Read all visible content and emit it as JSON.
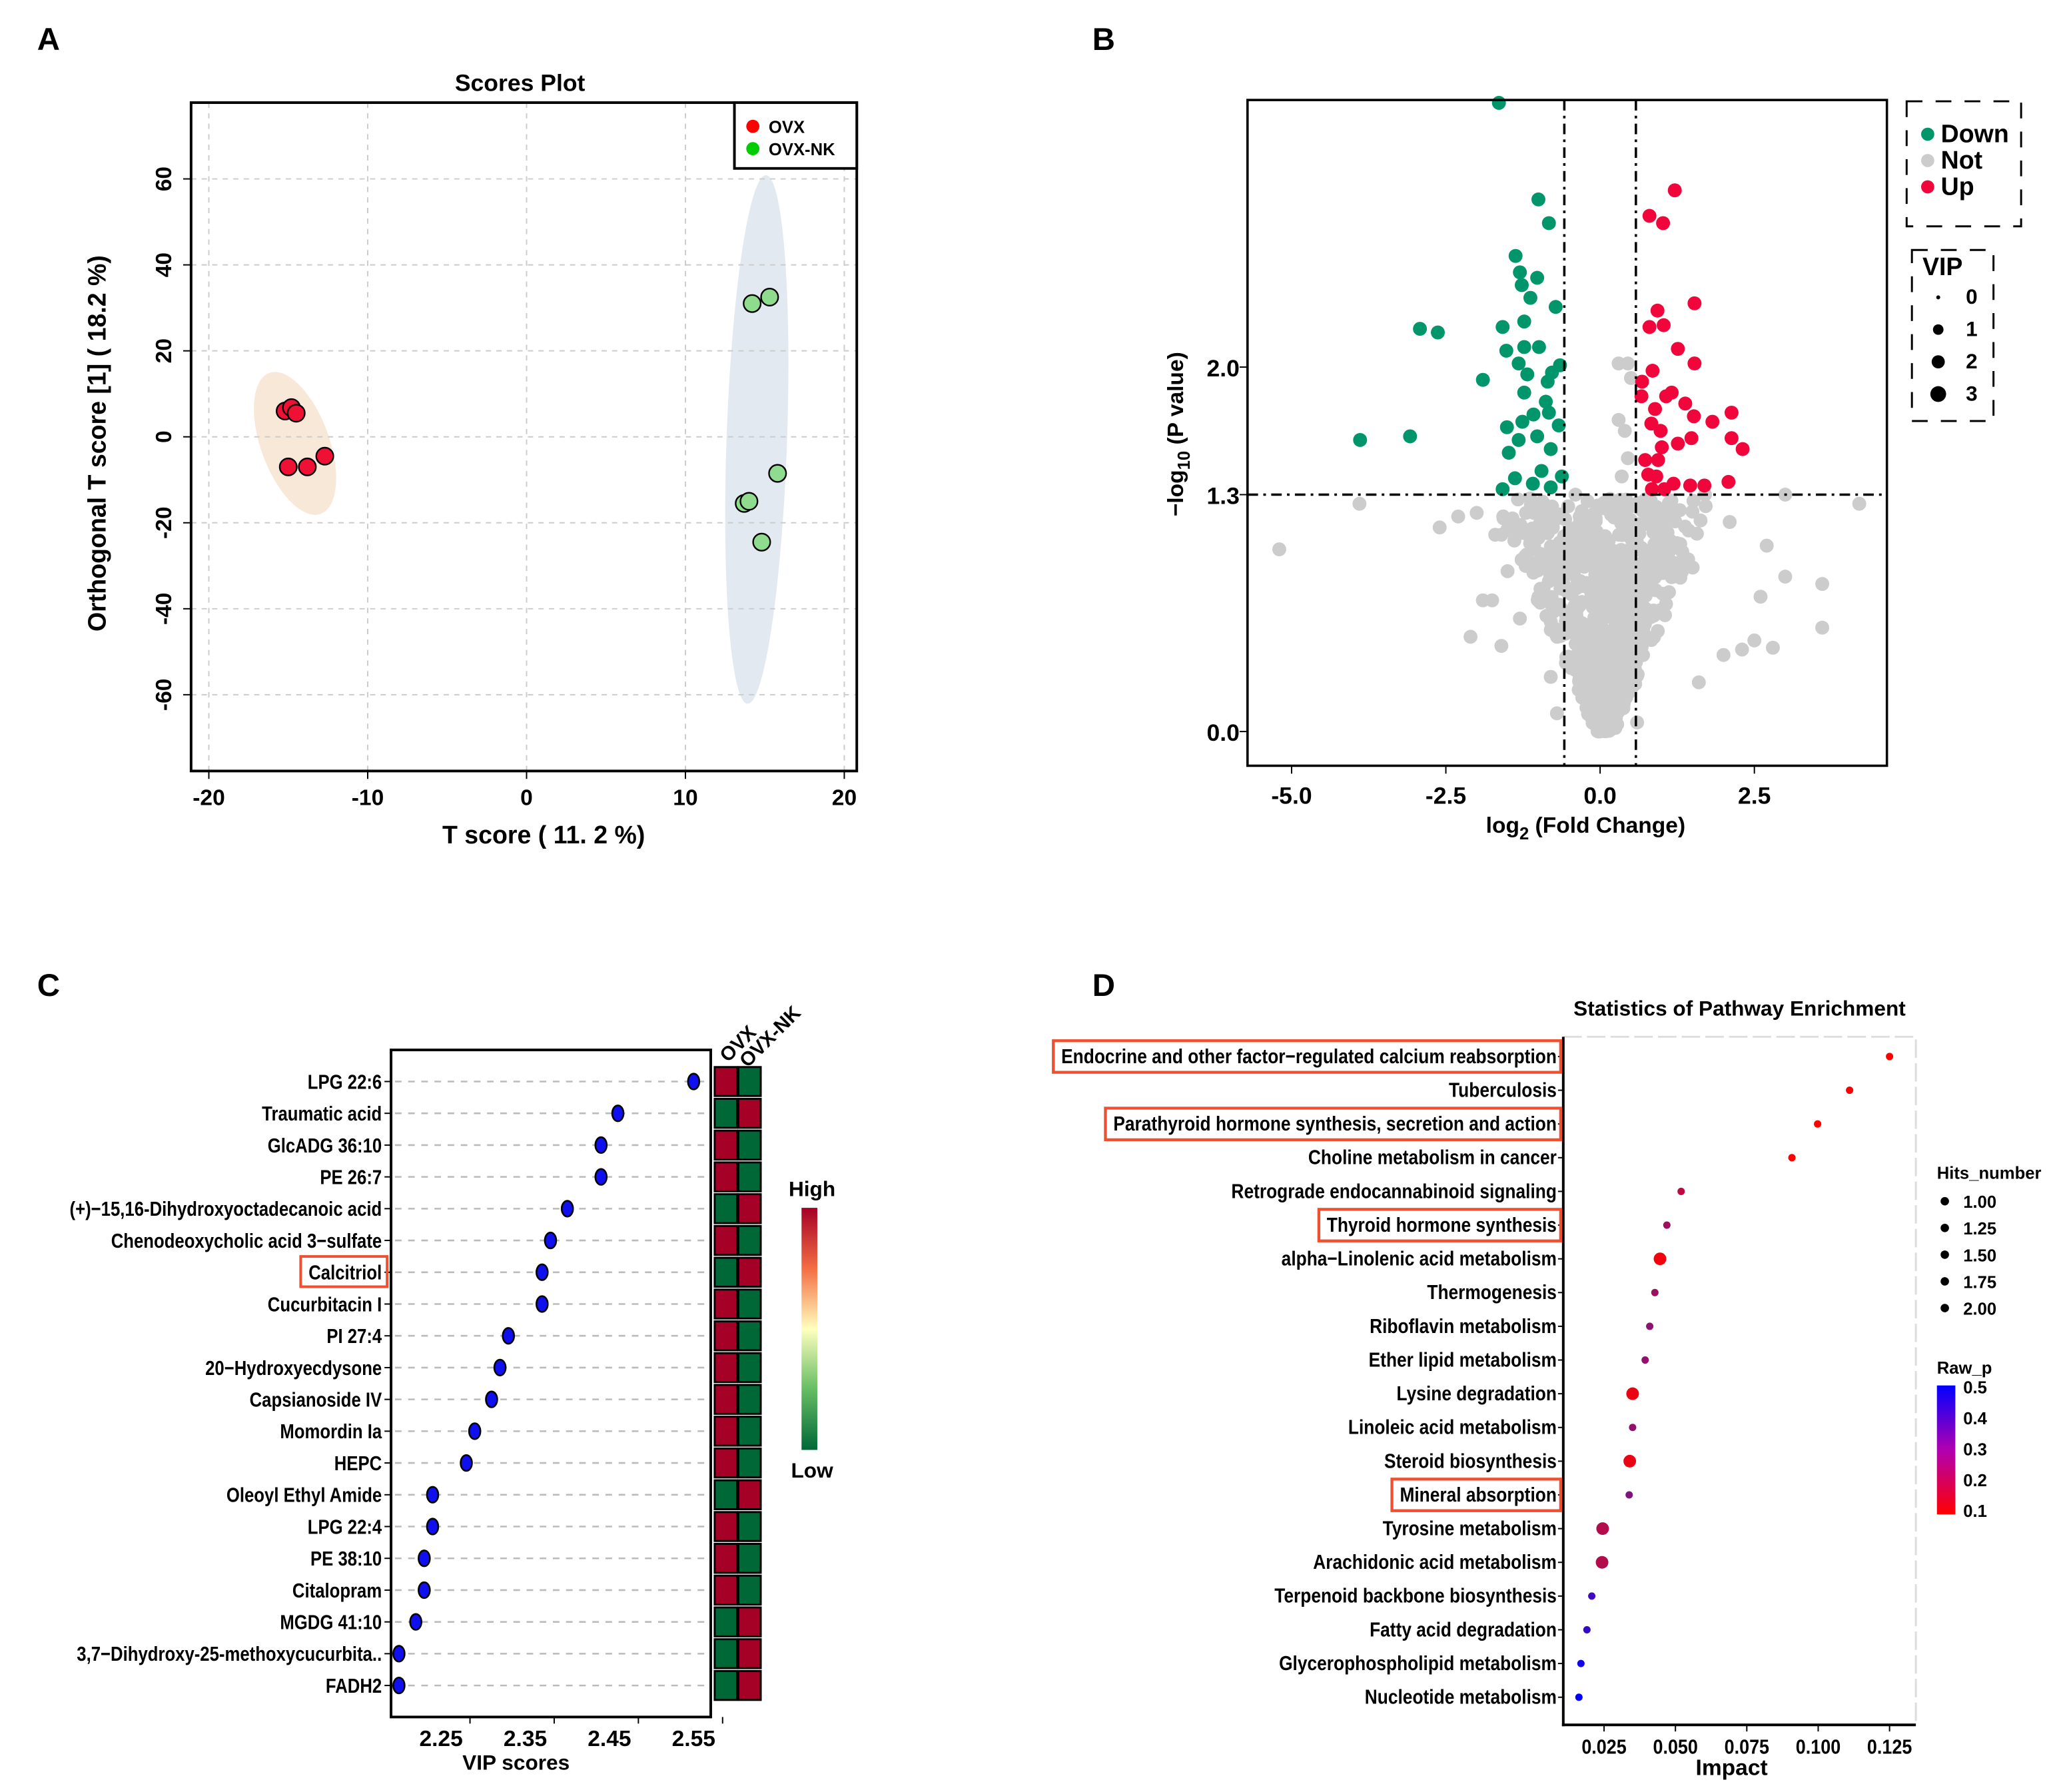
{
  "panel_letters": {
    "a": "A",
    "b": "B",
    "c": "C",
    "d": "D"
  },
  "chart_data": [
    {
      "id": "A",
      "type": "scatter",
      "title": "Scores Plot",
      "xlabel": "T score  ( 11. 2 %)",
      "ylabel": "Orthogonal T score [1] ( 18.2 %)",
      "xlim": [
        -21,
        21
      ],
      "ylim": [
        -78,
        75
      ],
      "grid": true,
      "xticks": [
        -20,
        -10,
        0,
        10,
        20
      ],
      "xtick_labels": [
        "-20",
        "-10",
        "0",
        "10",
        "20"
      ],
      "yticks": [
        -60,
        -40,
        -20,
        0,
        20,
        40,
        60
      ],
      "ytick_labels": [
        "-60",
        "-40",
        "-20",
        "0",
        "20",
        "40",
        "60"
      ],
      "legend_position": "top-right",
      "series": [
        {
          "name": "OVX",
          "color": "#ee1133",
          "legend_color": "#ff0000",
          "ellipse_color": "#f8e8d8",
          "points": [
            [
              -15.2,
              6.0
            ],
            [
              -14.8,
              6.8
            ],
            [
              -14.5,
              5.5
            ],
            [
              -15.0,
              -7.0
            ],
            [
              -13.8,
              -7.0
            ],
            [
              -12.7,
              -4.5
            ]
          ]
        },
        {
          "name": "OVX-NK",
          "color": "#8fdc8f",
          "legend_color": "#00cc00",
          "ellipse_color": "#e2e9f0",
          "points": [
            [
              14.2,
              31.0
            ],
            [
              15.3,
              32.5
            ],
            [
              15.8,
              -8.5
            ],
            [
              13.7,
              -15.5
            ],
            [
              14.0,
              -15.0
            ],
            [
              14.8,
              -24.5
            ]
          ]
        }
      ]
    },
    {
      "id": "B",
      "type": "scatter",
      "subtype": "volcano",
      "xlabel_main": "log",
      "xlabel_sub": "2",
      "xlabel_rest": " (Fold Change)",
      "ylabel_main": "−log",
      "ylabel_sub": "10",
      "ylabel_rest": " (P value)",
      "xlim": [
        -5.7,
        4.7
      ],
      "ylim": [
        -0.18,
        3.45
      ],
      "xticks": [
        -5.0,
        -2.5,
        0.0,
        2.5
      ],
      "xtick_labels": [
        "-5.0",
        "-2.5",
        "0.0",
        "2.5"
      ],
      "yticks": [
        0.0,
        1.3,
        2.0
      ],
      "ytick_labels": [
        "0.0",
        "1.3",
        "2.0"
      ],
      "fc_threshold": 0.58,
      "p_threshold": 1.3,
      "legend_position": "right",
      "legend": [
        {
          "label": "Down",
          "color": "#00956a"
        },
        {
          "label": "Not",
          "color": "#cccccc"
        },
        {
          "label": "Up",
          "color": "#f0063a"
        }
      ],
      "vip_legend": {
        "title": "VIP",
        "values": [
          "0",
          "1",
          "2",
          "3"
        ]
      },
      "down_points": [
        [
          -1.64,
          3.45
        ],
        [
          -1.0,
          2.92
        ],
        [
          -0.83,
          2.79
        ],
        [
          -1.37,
          2.61
        ],
        [
          -1.3,
          2.52
        ],
        [
          -1.02,
          2.49
        ],
        [
          -1.27,
          2.45
        ],
        [
          -1.13,
          2.38
        ],
        [
          -0.72,
          2.33
        ],
        [
          -2.92,
          2.21
        ],
        [
          -2.63,
          2.19
        ],
        [
          -1.58,
          2.22
        ],
        [
          -1.23,
          2.25
        ],
        [
          -1.52,
          2.09
        ],
        [
          -1.23,
          2.11
        ],
        [
          -0.99,
          2.11
        ],
        [
          -1.32,
          2.02
        ],
        [
          -1.18,
          1.96
        ],
        [
          -0.78,
          1.97
        ],
        [
          -0.65,
          2.01
        ],
        [
          -1.9,
          1.93
        ],
        [
          -0.85,
          1.92
        ],
        [
          -1.23,
          1.86
        ],
        [
          -0.88,
          1.81
        ],
        [
          -1.08,
          1.74
        ],
        [
          -1.26,
          1.7
        ],
        [
          -0.83,
          1.75
        ],
        [
          -1.51,
          1.67
        ],
        [
          -0.67,
          1.68
        ],
        [
          -1.02,
          1.62
        ],
        [
          -1.32,
          1.6
        ],
        [
          -3.89,
          1.6
        ],
        [
          -3.08,
          1.62
        ],
        [
          -0.8,
          1.55
        ],
        [
          -1.48,
          1.53
        ],
        [
          -0.95,
          1.43
        ],
        [
          -0.62,
          1.4
        ],
        [
          -1.38,
          1.39
        ],
        [
          -1.09,
          1.36
        ],
        [
          -1.58,
          1.33
        ],
        [
          -0.8,
          1.34
        ]
      ],
      "up_points": [
        [
          1.21,
          2.97
        ],
        [
          0.8,
          2.83
        ],
        [
          1.02,
          2.79
        ],
        [
          1.53,
          2.35
        ],
        [
          0.93,
          2.31
        ],
        [
          0.8,
          2.22
        ],
        [
          1.03,
          2.23
        ],
        [
          1.26,
          2.1
        ],
        [
          1.53,
          2.02
        ],
        [
          0.85,
          1.98
        ],
        [
          0.68,
          1.92
        ],
        [
          1.16,
          1.86
        ],
        [
          1.07,
          1.84
        ],
        [
          0.67,
          1.84
        ],
        [
          0.89,
          1.77
        ],
        [
          1.38,
          1.8
        ],
        [
          1.52,
          1.73
        ],
        [
          2.13,
          1.75
        ],
        [
          1.82,
          1.7
        ],
        [
          0.83,
          1.69
        ],
        [
          0.98,
          1.65
        ],
        [
          1.48,
          1.61
        ],
        [
          2.13,
          1.61
        ],
        [
          2.31,
          1.55
        ],
        [
          1.26,
          1.58
        ],
        [
          1.0,
          1.56
        ],
        [
          0.73,
          1.49
        ],
        [
          0.94,
          1.49
        ],
        [
          0.78,
          1.41
        ],
        [
          0.91,
          1.4
        ],
        [
          1.19,
          1.36
        ],
        [
          1.46,
          1.35
        ],
        [
          1.69,
          1.35
        ],
        [
          2.08,
          1.37
        ],
        [
          0.84,
          1.33
        ],
        [
          1.04,
          1.33
        ]
      ],
      "not_points": [
        [
          -5.2,
          1.0
        ],
        [
          -3.9,
          1.25
        ],
        [
          -2.6,
          1.12
        ],
        [
          -2.3,
          1.18
        ],
        [
          -2.0,
          1.2
        ],
        [
          -1.6,
          1.08
        ],
        [
          -1.7,
          1.08
        ],
        [
          -2.1,
          0.52
        ],
        [
          -1.9,
          0.72
        ],
        [
          -1.75,
          0.72
        ],
        [
          -1.6,
          0.47
        ],
        [
          -1.5,
          0.88
        ],
        [
          -1.3,
          0.62
        ],
        [
          3.0,
          1.3
        ],
        [
          4.2,
          1.25
        ],
        [
          2.7,
          1.02
        ],
        [
          3.0,
          0.85
        ],
        [
          3.6,
          0.81
        ],
        [
          3.6,
          0.57
        ],
        [
          2.6,
          0.74
        ],
        [
          2.8,
          0.46
        ],
        [
          2.1,
          1.15
        ],
        [
          2.5,
          0.5
        ],
        [
          2.3,
          0.45
        ],
        [
          2.0,
          0.42
        ],
        [
          1.6,
          0.27
        ],
        [
          1.7,
          1.3
        ],
        [
          0.3,
          2.02
        ],
        [
          0.45,
          2.02
        ],
        [
          0.5,
          1.94
        ],
        [
          0.3,
          1.71
        ],
        [
          0.4,
          1.65
        ],
        [
          0.45,
          1.5
        ],
        [
          0.35,
          1.4
        ],
        [
          -0.4,
          1.3
        ],
        [
          -1.2,
          1.2
        ],
        [
          -0.7,
          0.1
        ],
        [
          -0.8,
          0.3
        ],
        [
          0.6,
          0.05
        ],
        [
          1.5,
          0.9
        ]
      ],
      "not_cloud_count": 900
    },
    {
      "id": "C",
      "type": "scatter",
      "subtype": "vip-dotplot-with-heatmap",
      "xlabel": "VIP scores",
      "xlim": [
        2.19,
        2.57
      ],
      "xticks": [
        2.25,
        2.35,
        2.45,
        2.55
      ],
      "xtick_labels": [
        "2.25",
        "2.35",
        "2.45",
        "2.55"
      ],
      "heatmap_columns": [
        "OVX",
        "OVX-NK"
      ],
      "colorbar": {
        "high": "High",
        "low": "Low",
        "high_color": "#a50026",
        "mid_color": "#ffffbf",
        "low_color": "#006837"
      },
      "highlighted": [
        "Calcitriol"
      ],
      "items": [
        {
          "name": "LPG 22:6",
          "vip": 2.55,
          "ovx_high": 1
        },
        {
          "name": "Traumatic acid",
          "vip": 2.46,
          "ovx_high": 0
        },
        {
          "name": "GlcADG 36:10",
          "vip": 2.44,
          "ovx_high": 1
        },
        {
          "name": "PE 26:7",
          "vip": 2.44,
          "ovx_high": 1
        },
        {
          "name": "(+)−15,16-Dihydroxyoctadecanoic acid",
          "vip": 2.4,
          "ovx_high": 0
        },
        {
          "name": "Chenodeoxycholic acid 3−sulfate",
          "vip": 2.38,
          "ovx_high": 1
        },
        {
          "name": "Calcitriol",
          "vip": 2.37,
          "ovx_high": 0
        },
        {
          "name": "Cucurbitacin I",
          "vip": 2.37,
          "ovx_high": 1
        },
        {
          "name": "PI 27:4",
          "vip": 2.33,
          "ovx_high": 1
        },
        {
          "name": "20−Hydroxyecdysone",
          "vip": 2.32,
          "ovx_high": 1
        },
        {
          "name": "Capsianoside IV",
          "vip": 2.31,
          "ovx_high": 1
        },
        {
          "name": "Momordin Ia",
          "vip": 2.29,
          "ovx_high": 1
        },
        {
          "name": "HEPC",
          "vip": 2.28,
          "ovx_high": 1
        },
        {
          "name": "Oleoyl Ethyl Amide",
          "vip": 2.24,
          "ovx_high": 0
        },
        {
          "name": "LPG 22:4",
          "vip": 2.24,
          "ovx_high": 1
        },
        {
          "name": "PE 38:10",
          "vip": 2.23,
          "ovx_high": 1
        },
        {
          "name": "Citalopram",
          "vip": 2.23,
          "ovx_high": 1
        },
        {
          "name": "MGDG 41:10",
          "vip": 2.22,
          "ovx_high": 0
        },
        {
          "name": "3,7−Dihydroxy-25-methoxycucurbita..",
          "vip": 2.2,
          "ovx_high": 0
        },
        {
          "name": "FADH2",
          "vip": 2.2,
          "ovx_high": 0
        }
      ]
    },
    {
      "id": "D",
      "type": "scatter",
      "subtype": "pathway-enrichment",
      "title": "Statistics of Pathway Enrichment",
      "xlabel": "Impact",
      "xlim": [
        0.0116,
        0.1355
      ],
      "xticks": [
        0.025,
        0.05,
        0.075,
        0.1,
        0.125
      ],
      "xtick_labels": [
        "0.025",
        "0.050",
        "0.075",
        "0.100",
        "0.125"
      ],
      "size_legend": {
        "title": "Hits_number",
        "values": [
          "1.00",
          "1.25",
          "1.50",
          "1.75",
          "2.00"
        ]
      },
      "color_legend": {
        "title": "Raw_p",
        "values": [
          "0.5",
          "0.4",
          "0.3",
          "0.2",
          "0.1"
        ],
        "low_color": "#ff0000",
        "high_color": "#0000ff"
      },
      "highlight_color": "#f05030",
      "pathways": [
        {
          "name": "Endocrine and other factor−regulated calcium reabsorption",
          "impact": 0.125,
          "hits": 1,
          "raw_p": 0.1,
          "highlighted": true
        },
        {
          "name": "Tuberculosis",
          "impact": 0.111,
          "hits": 1,
          "raw_p": 0.1,
          "highlighted": false
        },
        {
          "name": "Parathyroid hormone synthesis, secretion and action",
          "impact": 0.0998,
          "hits": 1,
          "raw_p": 0.1,
          "highlighted": true
        },
        {
          "name": "Choline metabolism in cancer",
          "impact": 0.0908,
          "hits": 1,
          "raw_p": 0.1,
          "highlighted": false
        },
        {
          "name": "Retrograde endocannabinoid signaling",
          "impact": 0.052,
          "hits": 1,
          "raw_p": 0.2,
          "highlighted": false
        },
        {
          "name": "Thyroid hormone synthesis",
          "impact": 0.047,
          "hits": 1,
          "raw_p": 0.25,
          "highlighted": true
        },
        {
          "name": "alpha−Linolenic acid metabolism",
          "impact": 0.0446,
          "hits": 2,
          "raw_p": 0.12,
          "highlighted": false
        },
        {
          "name": "Thermogenesis",
          "impact": 0.0428,
          "hits": 1,
          "raw_p": 0.25,
          "highlighted": false
        },
        {
          "name": "Riboflavin metabolism",
          "impact": 0.041,
          "hits": 1,
          "raw_p": 0.28,
          "highlighted": false
        },
        {
          "name": "Ether lipid metabolism",
          "impact": 0.0394,
          "hits": 1,
          "raw_p": 0.27,
          "highlighted": false
        },
        {
          "name": "Lysine degradation",
          "impact": 0.035,
          "hits": 2,
          "raw_p": 0.13,
          "highlighted": false
        },
        {
          "name": "Linoleic acid metabolism",
          "impact": 0.035,
          "hits": 1,
          "raw_p": 0.27,
          "highlighted": false
        },
        {
          "name": "Steroid biosynthesis",
          "impact": 0.034,
          "hits": 2,
          "raw_p": 0.13,
          "highlighted": false
        },
        {
          "name": "Mineral absorption",
          "impact": 0.0338,
          "hits": 1,
          "raw_p": 0.3,
          "highlighted": true
        },
        {
          "name": "Tyrosine metabolism",
          "impact": 0.0245,
          "hits": 2,
          "raw_p": 0.22,
          "highlighted": false
        },
        {
          "name": "Arachidonic acid metabolism",
          "impact": 0.0243,
          "hits": 2,
          "raw_p": 0.22,
          "highlighted": false
        },
        {
          "name": "Terpenoid backbone biosynthesis",
          "impact": 0.0207,
          "hits": 1,
          "raw_p": 0.4,
          "highlighted": false
        },
        {
          "name": "Fatty acid degradation",
          "impact": 0.019,
          "hits": 1,
          "raw_p": 0.42,
          "highlighted": false
        },
        {
          "name": "Glycerophospholipid metabolism",
          "impact": 0.0169,
          "hits": 1,
          "raw_p": 0.47,
          "highlighted": false
        },
        {
          "name": "Nucleotide metabolism",
          "impact": 0.0162,
          "hits": 1,
          "raw_p": 0.5,
          "highlighted": false
        }
      ]
    }
  ]
}
